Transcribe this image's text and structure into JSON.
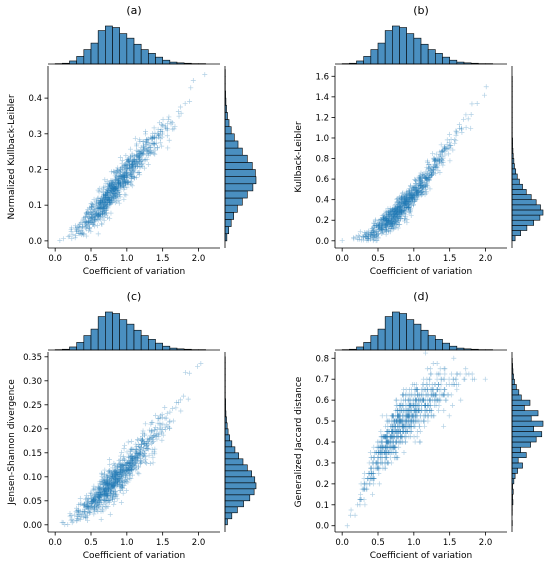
{
  "figure": {
    "series_color": "#1f77b4",
    "hist_color": "#4a8fc0",
    "hist_edge_color": "#000000"
  },
  "chart_data": [
    {
      "type": "scatter",
      "title": "(a)",
      "xlabel": "Coefficient of variation",
      "ylabel": "Normalized Kullback-Leibler",
      "xlim": [
        -0.1,
        2.3
      ],
      "ylim": [
        -0.02,
        0.49
      ],
      "xticks": [
        0.0,
        0.5,
        1.0,
        1.5,
        2.0
      ],
      "xtick_labels": [
        "0.0",
        "0.5",
        "1.0",
        "1.5",
        "2.0"
      ],
      "yticks": [
        0.0,
        0.1,
        0.2,
        0.3,
        0.4
      ],
      "ytick_labels": [
        "0.0",
        "0.1",
        "0.2",
        "0.3",
        "0.4"
      ],
      "marker": "+",
      "trend": {
        "x": [
          0.1,
          0.4,
          0.7,
          1.0,
          1.3,
          1.6,
          1.9,
          2.1
        ],
        "y": [
          0.005,
          0.045,
          0.11,
          0.19,
          0.26,
          0.33,
          0.4,
          0.46
        ]
      },
      "spread": 0.022,
      "x_hist": {
        "edges_start": 0.0,
        "bin_width": 0.1,
        "counts": [
          1,
          2,
          8,
          20,
          38,
          55,
          88,
          100,
          96,
          80,
          68,
          52,
          38,
          28,
          18,
          10,
          5,
          3,
          2,
          1,
          1
        ]
      },
      "y_hist": {
        "edges_start": 0.0,
        "bin_width": 0.02,
        "counts": [
          6,
          12,
          20,
          28,
          40,
          56,
          72,
          90,
          100,
          98,
          88,
          72,
          56,
          42,
          30,
          20,
          13,
          8,
          5,
          3,
          2,
          1,
          1,
          1
        ]
      }
    },
    {
      "type": "scatter",
      "title": "(b)",
      "xlabel": "Coefficient of variation",
      "ylabel": "Kullback-Leibler",
      "xlim": [
        -0.1,
        2.3
      ],
      "ylim": [
        -0.07,
        1.7
      ],
      "xticks": [
        0.0,
        0.5,
        1.0,
        1.5,
        2.0
      ],
      "xtick_labels": [
        "0.0",
        "0.5",
        "1.0",
        "1.5",
        "2.0"
      ],
      "yticks": [
        0.0,
        0.2,
        0.4,
        0.6,
        0.8,
        1.0,
        1.2,
        1.4,
        1.6
      ],
      "ytick_labels": [
        "0.0",
        "0.2",
        "0.4",
        "0.6",
        "0.8",
        "1.0",
        "1.2",
        "1.4",
        "1.6"
      ],
      "marker": "+",
      "trend": {
        "x": [
          0.1,
          0.4,
          0.7,
          1.0,
          1.3,
          1.6,
          1.9,
          2.1
        ],
        "y": [
          0.005,
          0.06,
          0.22,
          0.45,
          0.72,
          1.02,
          1.35,
          1.62
        ]
      },
      "spread": 0.06,
      "x_hist": {
        "edges_start": 0.0,
        "bin_width": 0.1,
        "counts": [
          1,
          2,
          8,
          20,
          38,
          55,
          88,
          100,
          96,
          80,
          68,
          52,
          38,
          28,
          18,
          10,
          5,
          3,
          2,
          1,
          1
        ]
      },
      "y_hist": {
        "edges_start": 0.0,
        "bin_width": 0.05,
        "counts": [
          10,
          28,
          48,
          70,
          90,
          100,
          92,
          78,
          62,
          46,
          34,
          24,
          17,
          12,
          8,
          6,
          4,
          3,
          2,
          2,
          1,
          1,
          1,
          1,
          1,
          1,
          1,
          1,
          1,
          1,
          1,
          1
        ]
      }
    },
    {
      "type": "scatter",
      "title": "(c)",
      "xlabel": "Coefficient of variation",
      "ylabel": "Jensen-Shannon divergence",
      "xlim": [
        -0.1,
        2.3
      ],
      "ylim": [
        -0.015,
        0.36
      ],
      "xticks": [
        0.0,
        0.5,
        1.0,
        1.5,
        2.0
      ],
      "xtick_labels": [
        "0.0",
        "0.5",
        "1.0",
        "1.5",
        "2.0"
      ],
      "yticks": [
        0.0,
        0.05,
        0.1,
        0.15,
        0.2,
        0.25,
        0.3,
        0.35
      ],
      "ytick_labels": [
        "0.00",
        "0.05",
        "0.10",
        "0.15",
        "0.20",
        "0.25",
        "0.30",
        "0.35"
      ],
      "marker": "+",
      "trend": {
        "x": [
          0.1,
          0.4,
          0.7,
          1.0,
          1.3,
          1.6,
          1.9,
          2.1
        ],
        "y": [
          0.004,
          0.03,
          0.07,
          0.12,
          0.17,
          0.23,
          0.29,
          0.34
        ]
      },
      "spread": 0.018,
      "x_hist": {
        "edges_start": 0.0,
        "bin_width": 0.1,
        "counts": [
          1,
          2,
          8,
          20,
          38,
          55,
          88,
          100,
          96,
          80,
          68,
          52,
          38,
          28,
          18,
          10,
          5,
          3,
          2,
          1,
          1
        ]
      },
      "y_hist": {
        "edges_start": 0.0,
        "bin_width": 0.0125,
        "counts": [
          8,
          22,
          40,
          60,
          80,
          94,
          100,
          96,
          86,
          72,
          58,
          44,
          32,
          22,
          15,
          10,
          7,
          5,
          3,
          2,
          2,
          1,
          1,
          1,
          1,
          1,
          1,
          1
        ]
      }
    },
    {
      "type": "scatter",
      "title": "(d)",
      "xlabel": "Coefficient of variation",
      "ylabel": "Generalized Jaccard distance",
      "xlim": [
        -0.1,
        2.3
      ],
      "ylim": [
        -0.03,
        0.83
      ],
      "xticks": [
        0.0,
        0.5,
        1.0,
        1.5,
        2.0
      ],
      "xtick_labels": [
        "0.0",
        "0.5",
        "1.0",
        "1.5",
        "2.0"
      ],
      "yticks": [
        0.0,
        0.1,
        0.2,
        0.3,
        0.4,
        0.5,
        0.6,
        0.7,
        0.8
      ],
      "ytick_labels": [
        "0.0",
        "0.1",
        "0.2",
        "0.3",
        "0.4",
        "0.5",
        "0.6",
        "0.7",
        "0.8"
      ],
      "marker": "+",
      "trend": {
        "x": [
          0.0,
          0.2,
          0.4,
          0.6,
          0.8,
          1.0,
          1.3,
          1.6,
          1.9,
          2.1
        ],
        "y": [
          0.0,
          0.1,
          0.25,
          0.38,
          0.48,
          0.55,
          0.63,
          0.69,
          0.74,
          0.78
        ]
      },
      "spread": 0.06,
      "quantize": 0.025,
      "x_hist": {
        "edges_start": 0.0,
        "bin_width": 0.1,
        "counts": [
          1,
          2,
          8,
          20,
          38,
          55,
          88,
          100,
          96,
          80,
          68,
          52,
          38,
          28,
          18,
          10,
          5,
          3,
          2,
          1,
          1
        ]
      },
      "y_hist": {
        "edges_start": 0.0,
        "bin_width": 0.025,
        "counts": [
          1,
          0,
          1,
          1,
          3,
          2,
          4,
          2,
          6,
          10,
          18,
          34,
          20,
          46,
          28,
          60,
          78,
          96,
          70,
          100,
          62,
          84,
          40,
          58,
          30,
          22,
          14,
          8,
          5,
          3,
          2,
          1
        ]
      }
    }
  ]
}
